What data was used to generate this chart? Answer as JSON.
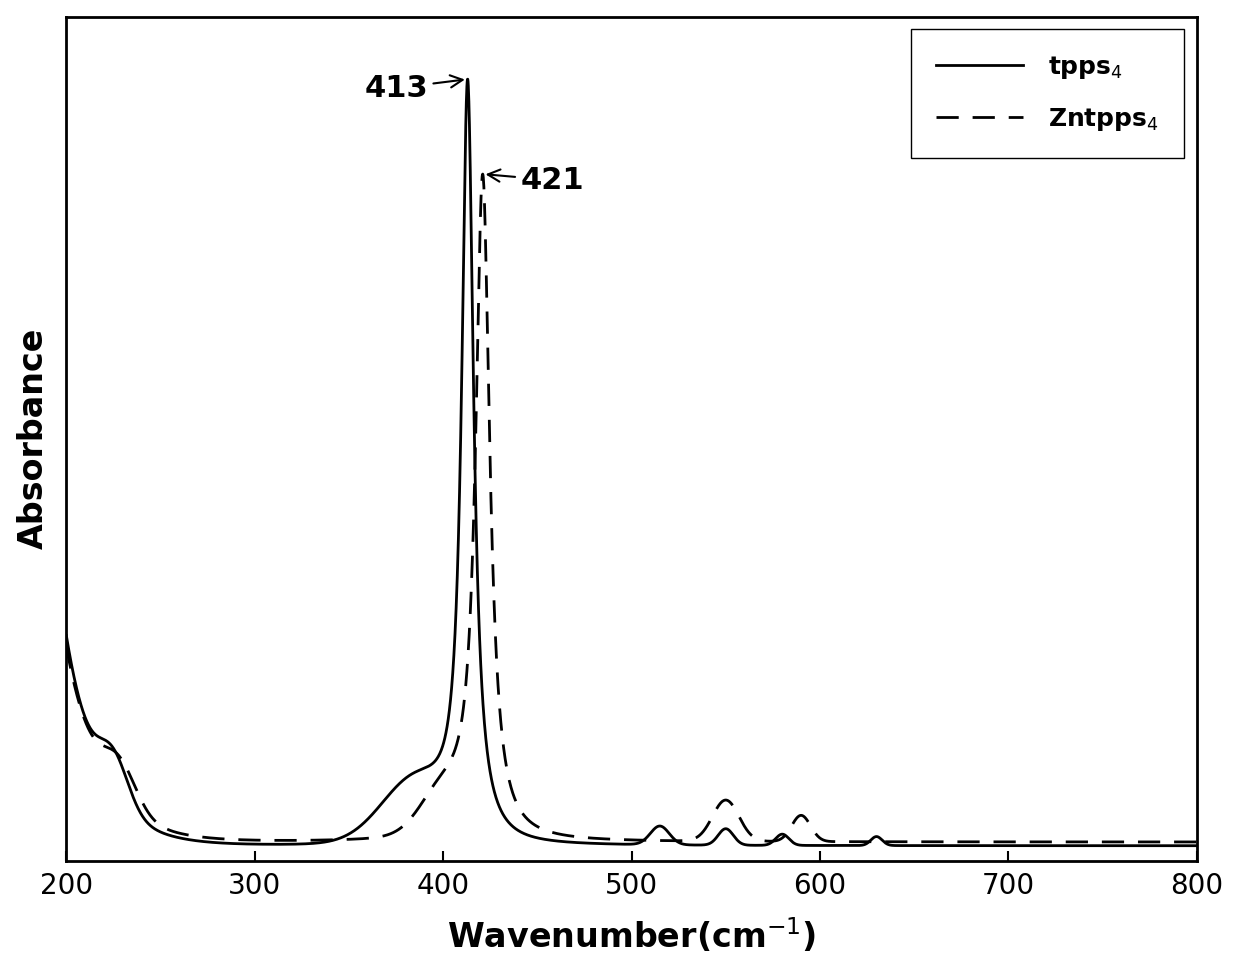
{
  "title": "",
  "xlabel": "Wavenumber(cm$^{-1}$)",
  "ylabel": "Absorbance",
  "xlim": [
    200,
    800
  ],
  "xticks": [
    200,
    300,
    400,
    500,
    600,
    700,
    800
  ],
  "line1_label": "tpps$_4$",
  "line2_label": "Zntpps$_4$",
  "annotation1": "413",
  "annotation2": "421",
  "line_color": "#000000",
  "background_color": "#ffffff",
  "legend_fontsize": 18,
  "axis_label_fontsize": 24,
  "tick_fontsize": 20,
  "annotation_fontsize": 22
}
